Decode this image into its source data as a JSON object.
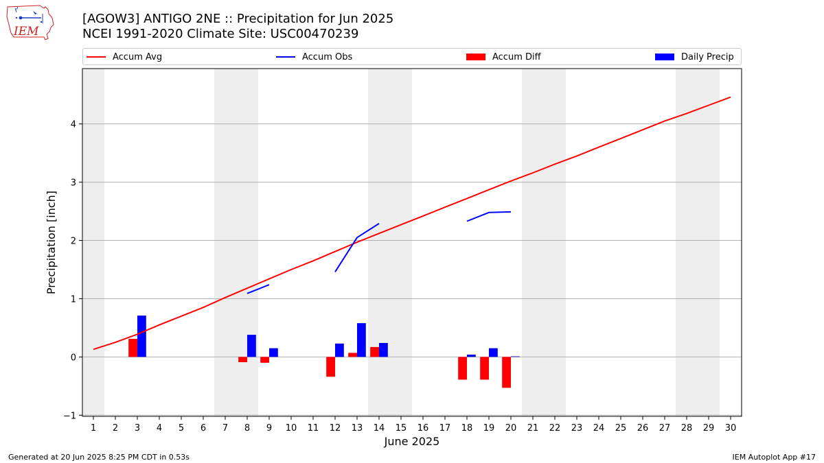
{
  "header": {
    "title_line1": "[AGOW3] ANTIGO 2NE :: Precipitation for Jun 2025",
    "title_line2": "NCEI 1991-2020 Climate Site: USC00470239"
  },
  "logo": {
    "text": "IEM"
  },
  "footer": {
    "left": "Generated at 20 Jun 2025 8:25 PM CDT in 0.53s",
    "right": "IEM Autoplot App #17"
  },
  "colors": {
    "accum_avg": "#ff0000",
    "accum_obs": "#0000ff",
    "accum_diff": "#ff0000",
    "daily_precip": "#0000ff",
    "weekend_shade": "#eeeeee",
    "grid": "#b0b0b0"
  },
  "chart_data": {
    "type": "bar",
    "xlabel": "June 2025",
    "ylabel": "Precipitation [inch]",
    "xlim": [
      0.5,
      30.5
    ],
    "ylim": [
      -1.02,
      4.95
    ],
    "yticks": [
      -1,
      0,
      1,
      2,
      3,
      4
    ],
    "xticks": [
      1,
      2,
      3,
      4,
      5,
      6,
      7,
      8,
      9,
      10,
      11,
      12,
      13,
      14,
      15,
      16,
      17,
      18,
      19,
      20,
      21,
      22,
      23,
      24,
      25,
      26,
      27,
      28,
      29,
      30
    ],
    "grid": "y",
    "legend": {
      "placement": "top",
      "entries": [
        "Accum Avg",
        "Accum Obs",
        "Accum Diff",
        "Daily Precip"
      ]
    },
    "weekend_days": [
      1,
      7,
      8,
      14,
      15,
      21,
      22,
      28,
      29
    ],
    "series": [
      {
        "name": "Accum Avg",
        "kind": "line",
        "x": [
          1,
          2,
          3,
          4,
          5,
          6,
          7,
          8,
          9,
          10,
          11,
          12,
          13,
          14,
          15,
          16,
          17,
          18,
          19,
          20,
          21,
          22,
          23,
          24,
          25,
          26,
          27,
          28,
          29,
          30
        ],
        "values": [
          0.13,
          0.25,
          0.39,
          0.55,
          0.7,
          0.85,
          1.02,
          1.18,
          1.34,
          1.5,
          1.65,
          1.81,
          1.97,
          2.12,
          2.27,
          2.42,
          2.57,
          2.72,
          2.87,
          3.02,
          3.16,
          3.31,
          3.45,
          3.6,
          3.75,
          3.9,
          4.05,
          4.18,
          4.32,
          4.46
        ]
      },
      {
        "name": "Accum Obs",
        "kind": "line",
        "segments": [
          {
            "x": [
              8,
              9
            ],
            "values": [
              1.09,
              1.24
            ]
          },
          {
            "x": [
              12,
              13,
              14
            ],
            "values": [
              1.46,
              2.05,
              2.29
            ]
          },
          {
            "x": [
              18,
              19,
              20
            ],
            "values": [
              2.33,
              2.48,
              2.49
            ]
          }
        ]
      },
      {
        "name": "Accum Diff",
        "kind": "bar",
        "x": [
          3,
          8,
          9,
          12,
          13,
          14,
          18,
          19,
          20
        ],
        "values": [
          0.31,
          -0.09,
          -0.1,
          -0.34,
          0.07,
          0.17,
          -0.39,
          -0.39,
          -0.53
        ]
      },
      {
        "name": "Daily Precip",
        "kind": "bar",
        "x": [
          3,
          8,
          9,
          12,
          13,
          14,
          18,
          19,
          20
        ],
        "values": [
          0.71,
          0.38,
          0.15,
          0.23,
          0.58,
          0.24,
          0.04,
          0.15,
          0.01
        ]
      }
    ]
  }
}
